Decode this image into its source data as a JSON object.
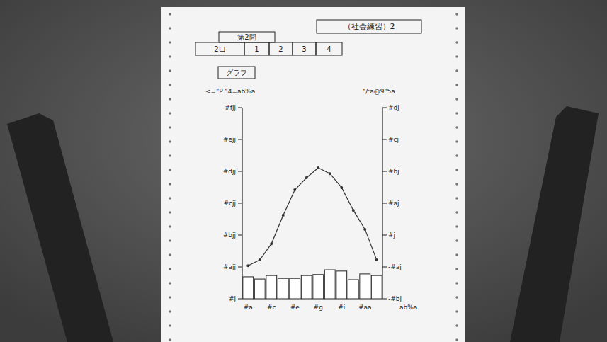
{
  "header": {
    "exam": "（社会練習）2",
    "question": "第2問",
    "boxes": [
      "2口",
      "1",
      "2",
      "3",
      "4"
    ],
    "label": "グラフ"
  },
  "chart_data": {
    "type": "bar",
    "categories": [
      "#a",
      null,
      "#c",
      null,
      "#e",
      null,
      "#g",
      null,
      "#i",
      null,
      "#aa",
      null
    ],
    "xlabel": "ab%a",
    "ylabel": "<=\"P \"4=ab%a",
    "y2label": "\"/:a@9\"5a",
    "series": [
      {
        "type": "bar",
        "color": "#ffffff",
        "values": [
          69,
          62,
          73,
          64,
          64,
          73,
          76,
          91,
          87,
          60,
          78,
          73
        ]
      },
      {
        "type": "line",
        "axis": "y2",
        "color": "#333333",
        "marker": "circle",
        "values": [
          -9.6,
          -7.8,
          -2.7,
          6.2,
          14.2,
          18,
          21.1,
          19.3,
          14.9,
          7.8,
          1.8,
          -7.8
        ]
      }
    ],
    "ylim": [
      0,
      600
    ],
    "yticks": [
      {
        "value": 0,
        "label": "#j"
      },
      {
        "value": 100,
        "label": "#ajj"
      },
      {
        "value": 200,
        "label": "#bjj"
      },
      {
        "value": 300,
        "label": "#cjj"
      },
      {
        "value": 400,
        "label": "#djj"
      },
      {
        "value": 500,
        "label": "#ejj"
      },
      {
        "value": 600,
        "label": "#fjj"
      }
    ],
    "y2lim": [
      -20,
      40
    ],
    "y2ticks": [
      {
        "value": -20,
        "label": "-#bj"
      },
      {
        "value": -10,
        "label": "-#aj"
      },
      {
        "value": 0,
        "label": "#j"
      },
      {
        "value": 10,
        "label": "#aj"
      },
      {
        "value": 20,
        "label": "#bj"
      },
      {
        "value": 30,
        "label": "#cj"
      },
      {
        "value": 40,
        "label": "#dj"
      }
    ],
    "grid": false
  }
}
